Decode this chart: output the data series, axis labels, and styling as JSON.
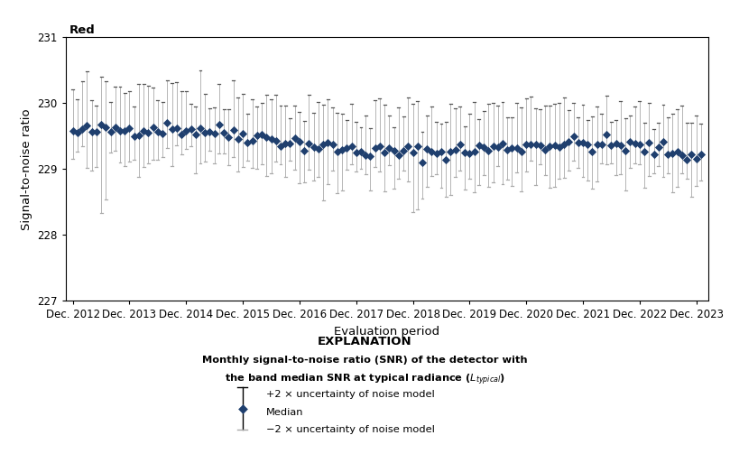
{
  "title": "Red",
  "xlabel": "Evaluation period",
  "ylabel": "Signal-to-noise ratio",
  "ylim": [
    227,
    231
  ],
  "yticks": [
    227,
    228,
    229,
    230,
    231
  ],
  "xtick_labels": [
    "Dec. 2012",
    "Dec. 2013",
    "Dec. 2014",
    "Dec. 2015",
    "Dec. 2016",
    "Dec. 2017",
    "Dec. 2018",
    "Dec. 2019",
    "Dec. 2020",
    "Dec. 2021",
    "Dec. 2022",
    "Dec. 2023"
  ],
  "median_color": "#1f3f6e",
  "errorbar_line_color": "#aaaaaa",
  "errorbar_cap_color": "#555555",
  "explanation_title": "EXPLANATION",
  "legend_plus": "+2 × uncertainty of noise model",
  "legend_median": "Median",
  "legend_minus": "−2 × uncertainty of noise model",
  "n_points": 134,
  "seed": 42
}
